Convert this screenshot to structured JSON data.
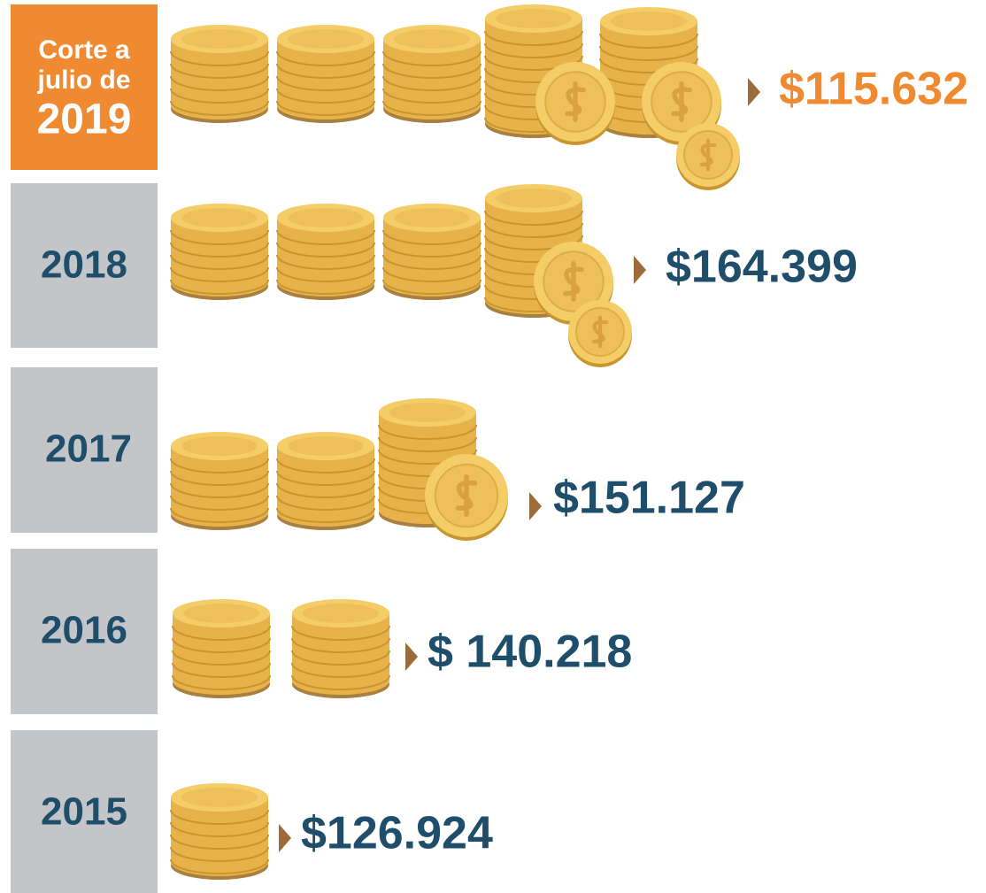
{
  "rows": [
    {
      "label_lines": [
        "Corte a",
        "julio de",
        "2019"
      ],
      "value": "$115.632"
    },
    {
      "label": "2018",
      "value": "$164.399"
    },
    {
      "label": "2017",
      "value": "$151.127"
    },
    {
      "label": "2016",
      "value": "$ 140.218"
    },
    {
      "label": "2015",
      "value": "$126.924"
    }
  ]
}
